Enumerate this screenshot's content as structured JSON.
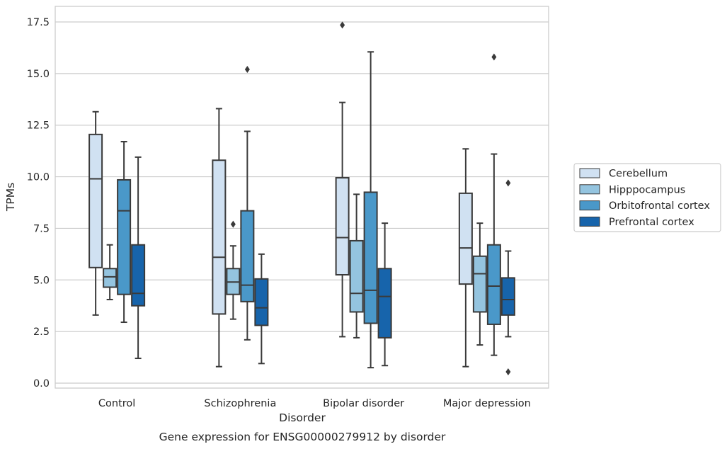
{
  "chart_data": {
    "type": "box",
    "caption": "Gene expression for ENSG00000279912 by disorder",
    "xlabel": "Disorder",
    "ylabel": "TPMs",
    "ylim": [
      -0.2,
      18.2
    ],
    "yticks": [
      0.0,
      2.5,
      5.0,
      7.5,
      10.0,
      12.5,
      15.0,
      17.5
    ],
    "ytick_labels": [
      "0.0",
      "2.5",
      "5.0",
      "7.5",
      "10.0",
      "12.5",
      "15.0",
      "17.5"
    ],
    "grid": "horizontal",
    "legend_position": "right",
    "categories": [
      "Control",
      "Schizophrenia",
      "Bipolar disorder",
      "Major depression"
    ],
    "series": [
      {
        "name": "Cerebellum",
        "color": "#d0e1f2",
        "boxes": [
          {
            "whislo": 3.3,
            "q1": 5.6,
            "med": 9.9,
            "q3": 12.05,
            "whishi": 13.15,
            "fliers": []
          },
          {
            "whislo": 0.8,
            "q1": 3.35,
            "med": 6.1,
            "q3": 10.8,
            "whishi": 13.3,
            "fliers": []
          },
          {
            "whislo": 2.25,
            "q1": 5.25,
            "med": 7.05,
            "q3": 9.95,
            "whishi": 13.6,
            "fliers": [
              17.35
            ]
          },
          {
            "whislo": 0.8,
            "q1": 4.8,
            "med": 6.55,
            "q3": 9.2,
            "whishi": 11.35,
            "fliers": []
          }
        ]
      },
      {
        "name": "Hipppocampus",
        "color": "#94c4df",
        "boxes": [
          {
            "whislo": 4.05,
            "q1": 4.65,
            "med": 5.15,
            "q3": 5.55,
            "whishi": 6.7,
            "fliers": []
          },
          {
            "whislo": 3.1,
            "q1": 4.3,
            "med": 4.9,
            "q3": 5.55,
            "whishi": 6.65,
            "fliers": [
              7.7
            ]
          },
          {
            "whislo": 2.2,
            "q1": 3.45,
            "med": 4.35,
            "q3": 6.9,
            "whishi": 9.15,
            "fliers": []
          },
          {
            "whislo": 1.85,
            "q1": 3.45,
            "med": 5.3,
            "q3": 6.15,
            "whishi": 7.75,
            "fliers": []
          }
        ]
      },
      {
        "name": "Orbitofrontal cortex",
        "color": "#4a98c9",
        "boxes": [
          {
            "whislo": 2.95,
            "q1": 4.3,
            "med": 8.35,
            "q3": 9.85,
            "whishi": 11.7,
            "fliers": []
          },
          {
            "whislo": 2.1,
            "q1": 3.95,
            "med": 4.75,
            "q3": 8.35,
            "whishi": 12.2,
            "fliers": [
              15.2
            ]
          },
          {
            "whislo": 0.75,
            "q1": 2.9,
            "med": 4.5,
            "q3": 9.25,
            "whishi": 16.05,
            "fliers": []
          },
          {
            "whislo": 1.35,
            "q1": 2.85,
            "med": 4.7,
            "q3": 6.7,
            "whishi": 11.1,
            "fliers": [
              15.8
            ]
          }
        ]
      },
      {
        "name": "Prefrontal cortex",
        "color": "#1764ab",
        "boxes": [
          {
            "whislo": 1.2,
            "q1": 3.75,
            "med": 4.35,
            "q3": 6.7,
            "whishi": 10.95,
            "fliers": []
          },
          {
            "whislo": 0.95,
            "q1": 2.8,
            "med": 3.65,
            "q3": 5.05,
            "whishi": 6.25,
            "fliers": []
          },
          {
            "whislo": 0.85,
            "q1": 2.2,
            "med": 4.2,
            "q3": 5.55,
            "whishi": 7.75,
            "fliers": []
          },
          {
            "whislo": 2.25,
            "q1": 3.3,
            "med": 4.05,
            "q3": 5.1,
            "whishi": 6.4,
            "fliers": [
              9.7,
              0.55
            ]
          }
        ]
      }
    ]
  }
}
